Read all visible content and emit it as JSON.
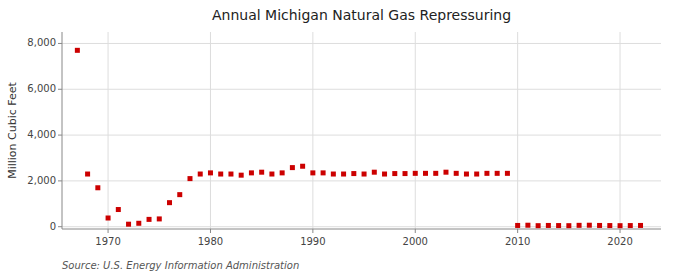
{
  "chart_data": {
    "type": "scatter",
    "title": "Annual Michigan Natural Gas Repressuring",
    "ylabel": "Million Cubic Feet",
    "source": "Source: U.S. Energy Information Administration",
    "x": [
      1967,
      1968,
      1969,
      1970,
      1971,
      1972,
      1973,
      1974,
      1975,
      1976,
      1977,
      1978,
      1979,
      1980,
      1981,
      1982,
      1983,
      1984,
      1985,
      1986,
      1987,
      1988,
      1989,
      1990,
      1991,
      1992,
      1993,
      1994,
      1995,
      1996,
      1997,
      1998,
      1999,
      2000,
      2001,
      2002,
      2003,
      2004,
      2005,
      2006,
      2007,
      2008,
      2009,
      2010,
      2011,
      2012,
      2013,
      2014,
      2015,
      2016,
      2017,
      2018,
      2019,
      2020,
      2021,
      2022
    ],
    "values": [
      7700,
      2300,
      1700,
      380,
      750,
      110,
      150,
      320,
      340,
      1050,
      1400,
      2100,
      2300,
      2350,
      2300,
      2300,
      2250,
      2350,
      2380,
      2300,
      2350,
      2580,
      2640,
      2350,
      2350,
      2300,
      2300,
      2320,
      2300,
      2380,
      2300,
      2320,
      2320,
      2330,
      2330,
      2330,
      2380,
      2330,
      2300,
      2300,
      2330,
      2330,
      2330,
      55,
      65,
      45,
      55,
      50,
      45,
      60,
      65,
      55,
      50,
      45,
      50,
      55
    ],
    "color": "#cc0000",
    "marker": "square",
    "xlim": [
      1965.5,
      2024
    ],
    "ylim": [
      -100,
      8500
    ],
    "xticks": [
      1970,
      1980,
      1990,
      2000,
      2010,
      2020
    ],
    "yticks": [
      0,
      {
        "value": 2000,
        "label": "2,000"
      },
      {
        "value": 4000,
        "label": "4,000"
      },
      {
        "value": 6000,
        "label": "6,000"
      },
      {
        "value": 8000,
        "label": "8,000"
      }
    ],
    "grid": true
  }
}
